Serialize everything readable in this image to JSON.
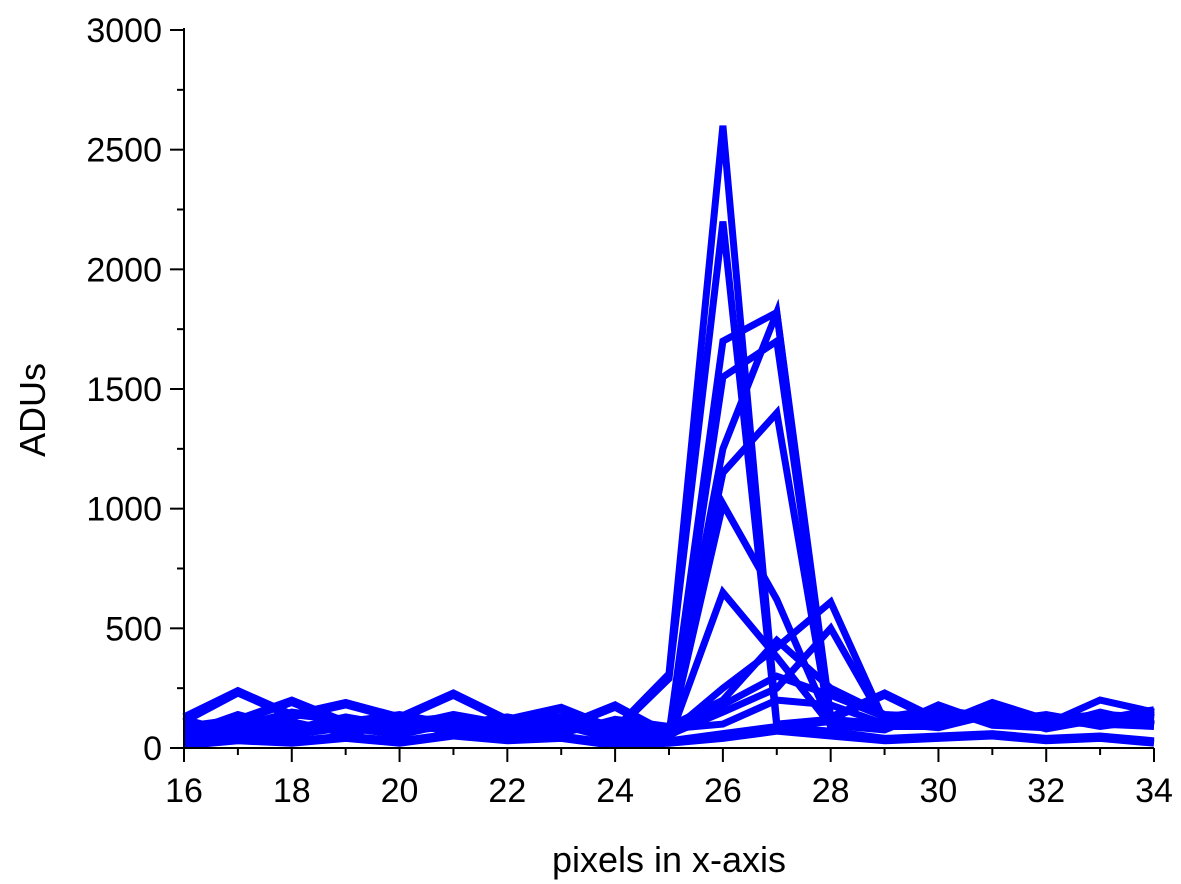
{
  "chart_data": {
    "type": "line",
    "title": "",
    "xlabel": "pixels in x-axis",
    "ylabel": "ADUs",
    "xlim": [
      16,
      34
    ],
    "ylim": [
      0,
      3000
    ],
    "x_ticks": [
      16,
      18,
      20,
      22,
      24,
      26,
      28,
      30,
      32,
      34
    ],
    "y_ticks": [
      0,
      500,
      1000,
      1500,
      2000,
      2500,
      3000
    ],
    "grid": false,
    "legend": "none",
    "line_color": "#0000FF",
    "x": [
      16,
      17,
      18,
      19,
      20,
      21,
      22,
      23,
      24,
      25,
      26,
      27,
      28,
      29,
      30,
      31,
      32,
      33,
      34
    ],
    "series": [
      {
        "values": [
          130,
          240,
          140,
          190,
          130,
          230,
          120,
          170,
          80,
          310,
          2600,
          100,
          120,
          100,
          100,
          190,
          120,
          110,
          100
        ]
      },
      {
        "values": [
          110,
          230,
          130,
          180,
          120,
          220,
          110,
          160,
          70,
          290,
          2200,
          90,
          110,
          90,
          90,
          180,
          110,
          100,
          90
        ]
      },
      {
        "values": [
          90,
          120,
          200,
          110,
          140,
          100,
          130,
          90,
          180,
          60,
          1700,
          1820,
          130,
          230,
          120,
          150,
          90,
          130,
          120
        ]
      },
      {
        "values": [
          80,
          110,
          190,
          100,
          130,
          90,
          120,
          80,
          170,
          50,
          1550,
          1700,
          120,
          220,
          110,
          140,
          80,
          120,
          110
        ]
      },
      {
        "values": [
          100,
          90,
          150,
          120,
          110,
          130,
          90,
          120,
          100,
          70,
          1250,
          1820,
          90,
          110,
          160,
          130,
          120,
          140,
          130
        ]
      },
      {
        "values": [
          95,
          85,
          140,
          115,
          105,
          125,
          85,
          115,
          95,
          65,
          1150,
          1400,
          85,
          100,
          150,
          120,
          115,
          130,
          125
        ]
      },
      {
        "values": [
          60,
          140,
          80,
          130,
          90,
          140,
          100,
          130,
          60,
          40,
          1020,
          620,
          100,
          80,
          180,
          100,
          90,
          150,
          100
        ]
      },
      {
        "values": [
          55,
          130,
          75,
          125,
          85,
          135,
          95,
          125,
          55,
          35,
          650,
          380,
          95,
          75,
          170,
          95,
          85,
          140,
          95
        ]
      },
      {
        "values": [
          40,
          70,
          60,
          90,
          60,
          110,
          70,
          100,
          40,
          60,
          250,
          420,
          610,
          110,
          90,
          150,
          100,
          200,
          150
        ]
      },
      {
        "values": [
          35,
          65,
          55,
          85,
          55,
          105,
          65,
          95,
          35,
          55,
          150,
          250,
          500,
          105,
          85,
          140,
          95,
          120,
          140
        ]
      },
      {
        "values": [
          120,
          60,
          100,
          70,
          120,
          60,
          90,
          60,
          120,
          90,
          200,
          450,
          250,
          140,
          130,
          120,
          110,
          120,
          160
        ]
      },
      {
        "values": [
          70,
          100,
          50,
          110,
          70,
          90,
          60,
          80,
          90,
          50,
          180,
          300,
          220,
          130,
          160,
          110,
          140,
          100,
          150
        ]
      },
      {
        "values": [
          50,
          80,
          110,
          60,
          100,
          70,
          110,
          90,
          50,
          80,
          100,
          200,
          180,
          100,
          120,
          150,
          130,
          90,
          120
        ]
      },
      {
        "values": [
          20,
          40,
          30,
          50,
          30,
          60,
          40,
          50,
          20,
          30,
          60,
          90,
          70,
          40,
          50,
          60,
          40,
          50,
          30
        ]
      },
      {
        "values": [
          10,
          30,
          20,
          40,
          20,
          50,
          30,
          40,
          10,
          20,
          40,
          70,
          50,
          30,
          40,
          50,
          30,
          40,
          20
        ]
      }
    ]
  }
}
